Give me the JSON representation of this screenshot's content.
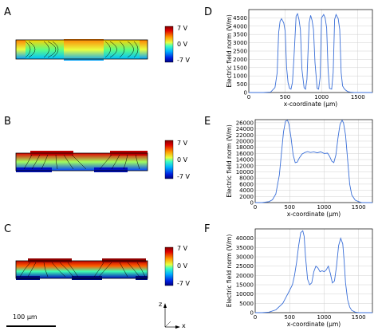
{
  "panels": {
    "A": "A",
    "B": "B",
    "C": "C",
    "D": "D",
    "E": "E",
    "F": "F"
  },
  "colorbar_labels": [
    "7 V",
    "0 V",
    "-7 V"
  ],
  "scale_bar_label": "100 μm",
  "axis_triad": {
    "z": "z",
    "x": "x"
  },
  "chart_data": [
    {
      "id": "D",
      "type": "line",
      "xlabel": "x-coordinate (μm)",
      "ylabel": "Electric field norm (V/m)",
      "xlim": [
        0,
        1700
      ],
      "ylim": [
        0,
        5000
      ],
      "xticks": [
        0,
        500,
        1000,
        1500
      ],
      "yticks": [
        0,
        500,
        1000,
        1500,
        2000,
        2500,
        3000,
        3500,
        4000,
        4500
      ],
      "grid": true,
      "x": [
        0,
        100,
        200,
        300,
        360,
        390,
        410,
        430,
        450,
        480,
        500,
        520,
        540,
        560,
        580,
        600,
        620,
        650,
        670,
        690,
        710,
        730,
        760,
        780,
        800,
        830,
        850,
        870,
        890,
        910,
        940,
        960,
        980,
        1000,
        1030,
        1050,
        1070,
        1090,
        1110,
        1140,
        1160,
        1180,
        1200,
        1230,
        1250,
        1270,
        1290,
        1310,
        1330,
        1360,
        1400,
        1450,
        1550,
        1700
      ],
      "y": [
        0,
        0,
        0,
        30,
        300,
        1200,
        3600,
        4300,
        4450,
        4200,
        3700,
        1500,
        600,
        250,
        200,
        600,
        2000,
        4600,
        4750,
        4400,
        3800,
        1400,
        300,
        200,
        800,
        4200,
        4650,
        4350,
        3800,
        1800,
        250,
        200,
        900,
        4500,
        4700,
        4500,
        3900,
        1400,
        250,
        200,
        1200,
        4400,
        4700,
        4450,
        3800,
        1200,
        400,
        250,
        150,
        60,
        20,
        0,
        0,
        0
      ]
    },
    {
      "id": "E",
      "type": "line",
      "xlabel": "x-coordinate (μm)",
      "ylabel": "Electric field norm (V/m)",
      "xlim": [
        0,
        1700
      ],
      "ylim": [
        0,
        27000
      ],
      "xticks": [
        0,
        500,
        1000,
        1500
      ],
      "yticks": [
        0,
        2000,
        4000,
        6000,
        8000,
        10000,
        12000,
        14000,
        16000,
        18000,
        20000,
        22000,
        24000,
        26000
      ],
      "grid": true,
      "x": [
        0,
        100,
        200,
        250,
        300,
        350,
        380,
        410,
        440,
        470,
        490,
        520,
        550,
        580,
        610,
        640,
        680,
        720,
        760,
        800,
        850,
        900,
        950,
        1000,
        1050,
        1080,
        1110,
        1140,
        1170,
        1200,
        1230,
        1260,
        1280,
        1310,
        1340,
        1370,
        1400,
        1450,
        1500,
        1550,
        1700
      ],
      "y": [
        0,
        0,
        300,
        900,
        2800,
        9000,
        16000,
        23000,
        26500,
        26800,
        25500,
        21000,
        15500,
        13000,
        13200,
        14500,
        15800,
        16300,
        16600,
        16300,
        16500,
        16200,
        16500,
        16000,
        16100,
        15000,
        13500,
        13000,
        15500,
        21000,
        25500,
        26800,
        26000,
        22000,
        14000,
        6000,
        2500,
        800,
        300,
        0,
        0
      ]
    },
    {
      "id": "F",
      "type": "line",
      "xlabel": "x-coordinate (μm)",
      "ylabel": "Electric field norm (V/m)",
      "xlim": [
        0,
        1700
      ],
      "ylim": [
        0,
        45000
      ],
      "xticks": [
        0,
        500,
        1000,
        1500
      ],
      "yticks": [
        0,
        5000,
        10000,
        15000,
        20000,
        25000,
        30000,
        35000,
        40000
      ],
      "grid": true,
      "x": [
        0,
        100,
        200,
        300,
        400,
        450,
        500,
        540,
        570,
        600,
        630,
        660,
        690,
        710,
        730,
        760,
        790,
        820,
        850,
        880,
        910,
        940,
        970,
        1000,
        1030,
        1060,
        1090,
        1120,
        1150,
        1180,
        1210,
        1240,
        1270,
        1290,
        1310,
        1340,
        1370,
        1400,
        1450,
        1500,
        1600,
        1700
      ],
      "y": [
        0,
        0,
        300,
        1500,
        5000,
        8500,
        12000,
        15000,
        20000,
        27000,
        36000,
        43000,
        44000,
        41000,
        30000,
        18000,
        15000,
        16000,
        22000,
        25000,
        24000,
        22000,
        22500,
        22000,
        23000,
        25000,
        21000,
        16000,
        17000,
        25000,
        36000,
        40000,
        37000,
        28000,
        16000,
        7000,
        3000,
        1200,
        300,
        0,
        0,
        0
      ]
    }
  ]
}
